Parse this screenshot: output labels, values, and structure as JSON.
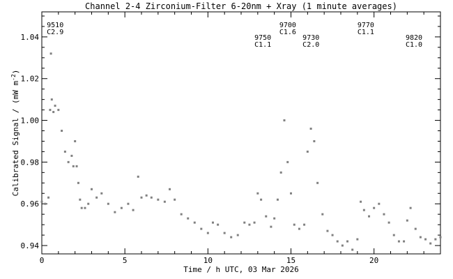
{
  "chart_data": {
    "type": "scatter",
    "title": "Channel 2-4   Zirconium-Filter   6-20nm + Xray   (1 minute averages)",
    "xlabel": "Time / h UTC, 03 Mar 2026",
    "ylabel": "Calibrated Signal / (mW m",
    "ylabel_sup": "-2",
    "ylabel_close": ")",
    "xlim": [
      0,
      24
    ],
    "ylim": [
      0.936,
      1.052
    ],
    "x_ticks": [
      0,
      5,
      10,
      15,
      20
    ],
    "y_ticks": [
      0.94,
      0.96,
      0.98,
      1.0,
      1.02,
      1.04
    ],
    "y_tick_labels": [
      "0.94",
      "0.96",
      "0.98",
      "1.00",
      "1.02",
      "1.04"
    ],
    "x_tick_labels": [
      "0",
      "5",
      "10",
      "15",
      "20"
    ],
    "grid": false,
    "series_color": "#808080",
    "annotations": [
      {
        "time": 0.3,
        "row": 0,
        "line1": "9510",
        "line2": "C2.9"
      },
      {
        "time": 12.8,
        "row": 1,
        "line1": "9750",
        "line2": "C1.1"
      },
      {
        "time": 14.3,
        "row": 0,
        "line1": "9700",
        "line2": "C1.6"
      },
      {
        "time": 15.7,
        "row": 1,
        "line1": "9730",
        "line2": "C2.0"
      },
      {
        "time": 19.0,
        "row": 0,
        "line1": "9770",
        "line2": "C1.1"
      },
      {
        "time": 21.9,
        "row": 1,
        "line1": "9820",
        "line2": "C1.0"
      }
    ],
    "series": [
      {
        "x": [
          0.0,
          0.2,
          0.4,
          0.5,
          0.55,
          0.6,
          0.7,
          0.8,
          1.0,
          1.2,
          1.4,
          1.6,
          1.8,
          1.9,
          2.0,
          2.1,
          2.2,
          2.3,
          2.4,
          2.6,
          2.8,
          3.0,
          3.3,
          3.6,
          4.0,
          4.4,
          4.8,
          5.2,
          5.5,
          5.8,
          6.0,
          6.3,
          6.6,
          7.0,
          7.4,
          7.7,
          8.0,
          8.4,
          8.8,
          9.2,
          9.6,
          10.0,
          10.3,
          10.6,
          11.0,
          11.4,
          11.8,
          12.2,
          12.5,
          12.8,
          13.0,
          13.2,
          13.5,
          13.8,
          14.0,
          14.2,
          14.4,
          14.6,
          14.8,
          15.0,
          15.2,
          15.5,
          15.8,
          16.0,
          16.2,
          16.4,
          16.6,
          16.9,
          17.2,
          17.5,
          17.8,
          18.1,
          18.4,
          18.7,
          19.0,
          19.2,
          19.4,
          19.7,
          20.0,
          20.3,
          20.6,
          20.9,
          21.2,
          21.5,
          21.8,
          22.0,
          22.2,
          22.5,
          22.8,
          23.1,
          23.4,
          23.7,
          24.0
        ],
        "y": [
          0.961,
          0.96,
          0.963,
          1.005,
          1.032,
          1.01,
          1.004,
          1.007,
          1.005,
          0.995,
          0.985,
          0.98,
          0.983,
          0.978,
          0.99,
          0.978,
          0.97,
          0.962,
          0.958,
          0.958,
          0.96,
          0.967,
          0.963,
          0.965,
          0.96,
          0.956,
          0.958,
          0.96,
          0.957,
          0.973,
          0.963,
          0.964,
          0.963,
          0.962,
          0.961,
          0.967,
          0.962,
          0.955,
          0.953,
          0.951,
          0.948,
          0.946,
          0.951,
          0.95,
          0.946,
          0.944,
          0.945,
          0.951,
          0.95,
          0.951,
          0.965,
          0.962,
          0.954,
          0.949,
          0.953,
          0.962,
          0.975,
          1.0,
          0.98,
          0.965,
          0.95,
          0.948,
          0.95,
          0.985,
          0.996,
          0.99,
          0.97,
          0.955,
          0.947,
          0.945,
          0.942,
          0.94,
          0.942,
          0.938,
          0.943,
          0.961,
          0.957,
          0.954,
          0.958,
          0.96,
          0.955,
          0.951,
          0.945,
          0.942,
          0.942,
          0.952,
          0.958,
          0.948,
          0.944,
          0.943,
          0.941,
          0.943,
          0.944
        ]
      }
    ]
  }
}
